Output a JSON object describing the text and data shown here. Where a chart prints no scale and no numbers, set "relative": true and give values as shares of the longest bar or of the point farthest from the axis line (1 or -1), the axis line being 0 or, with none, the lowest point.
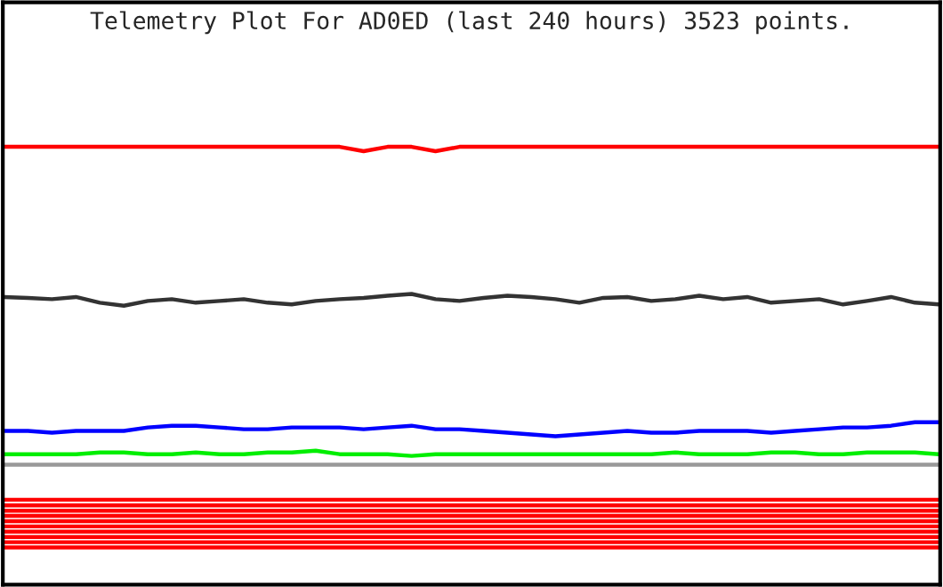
{
  "chart_data": {
    "type": "line",
    "title": "Telemetry Plot For AD0ED (last 240 hours) 3523 points.",
    "relative": true,
    "grid": false,
    "legend": false,
    "marker": "none",
    "line_style": "solid",
    "categories": [
      null,
      null,
      null,
      null,
      null,
      null,
      null,
      null,
      null,
      null,
      null,
      null,
      null,
      null,
      null,
      null,
      null,
      null,
      null,
      null,
      null,
      null,
      null,
      null,
      null,
      null,
      null,
      null,
      null,
      null,
      null,
      null,
      null,
      null,
      null,
      null,
      null,
      null,
      null,
      null
    ],
    "series": [
      {
        "color": "#ff0000",
        "values": [
          1,
          1,
          1,
          1,
          1,
          1,
          1,
          1,
          1,
          1,
          1,
          1,
          1,
          1,
          1,
          0.99,
          1,
          1,
          0.99,
          1,
          1,
          1,
          1,
          1,
          1,
          1,
          1,
          1,
          1,
          1,
          1,
          1,
          1,
          1,
          1,
          1,
          1,
          1,
          1,
          1
        ]
      },
      {
        "color": "#333333",
        "values": [
          0.657,
          0.655,
          0.652,
          0.657,
          0.644,
          0.637,
          0.648,
          0.652,
          0.644,
          0.648,
          0.652,
          0.644,
          0.64,
          0.648,
          0.652,
          0.655,
          0.66,
          0.664,
          0.652,
          0.648,
          0.655,
          0.66,
          0.657,
          0.652,
          0.644,
          0.655,
          0.657,
          0.648,
          0.652,
          0.66,
          0.652,
          0.657,
          0.644,
          0.648,
          0.652,
          0.64,
          0.648,
          0.657,
          0.644,
          0.64
        ]
      },
      {
        "color": "#0000ff",
        "values": [
          0.351,
          0.351,
          0.347,
          0.351,
          0.351,
          0.351,
          0.359,
          0.363,
          0.363,
          0.359,
          0.355,
          0.355,
          0.359,
          0.359,
          0.359,
          0.355,
          0.359,
          0.363,
          0.355,
          0.355,
          0.351,
          0.347,
          0.343,
          0.339,
          0.343,
          0.347,
          0.351,
          0.347,
          0.347,
          0.351,
          0.351,
          0.351,
          0.347,
          0.351,
          0.355,
          0.359,
          0.359,
          0.363,
          0.371,
          0.371
        ]
      },
      {
        "color": "#00ee00",
        "values": [
          0.298,
          0.298,
          0.298,
          0.298,
          0.302,
          0.302,
          0.298,
          0.298,
          0.302,
          0.298,
          0.298,
          0.302,
          0.302,
          0.306,
          0.298,
          0.298,
          0.298,
          0.294,
          0.298,
          0.298,
          0.298,
          0.298,
          0.298,
          0.298,
          0.298,
          0.298,
          0.298,
          0.298,
          0.302,
          0.298,
          0.298,
          0.298,
          0.302,
          0.302,
          0.298,
          0.298,
          0.302,
          0.302,
          0.302,
          0.298
        ]
      },
      {
        "color": "#999999",
        "values": [
          0.274,
          0.274,
          0.274,
          0.274,
          0.274,
          0.274,
          0.274,
          0.274,
          0.274,
          0.274,
          0.274,
          0.274,
          0.274,
          0.274,
          0.274,
          0.274,
          0.274,
          0.274,
          0.274,
          0.274,
          0.274,
          0.274,
          0.274,
          0.274,
          0.274,
          0.274,
          0.274,
          0.274,
          0.274,
          0.274,
          0.274,
          0.274,
          0.274,
          0.274,
          0.274,
          0.274,
          0.274,
          0.274,
          0.274,
          0.274
        ]
      },
      {
        "color": "#ff0000",
        "values": [
          0.194,
          0.194,
          0.194,
          0.194,
          0.194,
          0.194,
          0.194,
          0.194,
          0.194,
          0.194,
          0.194,
          0.194,
          0.194,
          0.194,
          0.194,
          0.194,
          0.194,
          0.194,
          0.194,
          0.194,
          0.194,
          0.194,
          0.194,
          0.194,
          0.194,
          0.194,
          0.194,
          0.194,
          0.194,
          0.194,
          0.194,
          0.194,
          0.194,
          0.194,
          0.194,
          0.194,
          0.194,
          0.194,
          0.194,
          0.194
        ]
      },
      {
        "color": "#ff0000",
        "values": [
          0.181,
          0.181,
          0.181,
          0.181,
          0.181,
          0.181,
          0.181,
          0.181,
          0.181,
          0.181,
          0.181,
          0.181,
          0.181,
          0.181,
          0.181,
          0.181,
          0.181,
          0.181,
          0.181,
          0.181,
          0.181,
          0.181,
          0.181,
          0.181,
          0.181,
          0.181,
          0.181,
          0.181,
          0.181,
          0.181,
          0.181,
          0.181,
          0.181,
          0.181,
          0.181,
          0.181,
          0.181,
          0.181,
          0.181,
          0.181
        ]
      },
      {
        "color": "#ff0000",
        "values": [
          0.169,
          0.169,
          0.169,
          0.169,
          0.169,
          0.169,
          0.169,
          0.169,
          0.169,
          0.169,
          0.169,
          0.169,
          0.169,
          0.169,
          0.169,
          0.169,
          0.169,
          0.169,
          0.169,
          0.169,
          0.169,
          0.169,
          0.169,
          0.169,
          0.169,
          0.169,
          0.169,
          0.169,
          0.169,
          0.169,
          0.169,
          0.169,
          0.169,
          0.169,
          0.169,
          0.169,
          0.169,
          0.169,
          0.169,
          0.169
        ]
      },
      {
        "color": "#ff0000",
        "values": [
          0.157,
          0.157,
          0.157,
          0.157,
          0.157,
          0.157,
          0.157,
          0.157,
          0.157,
          0.157,
          0.157,
          0.157,
          0.157,
          0.157,
          0.157,
          0.157,
          0.157,
          0.157,
          0.157,
          0.157,
          0.157,
          0.157,
          0.157,
          0.157,
          0.157,
          0.157,
          0.157,
          0.157,
          0.157,
          0.157,
          0.157,
          0.157,
          0.157,
          0.157,
          0.157,
          0.157,
          0.157,
          0.157,
          0.157,
          0.157
        ]
      },
      {
        "color": "#ff0000",
        "values": [
          0.145,
          0.145,
          0.145,
          0.145,
          0.145,
          0.145,
          0.145,
          0.145,
          0.145,
          0.145,
          0.145,
          0.145,
          0.145,
          0.145,
          0.145,
          0.145,
          0.145,
          0.145,
          0.145,
          0.145,
          0.145,
          0.145,
          0.145,
          0.145,
          0.145,
          0.145,
          0.145,
          0.145,
          0.145,
          0.145,
          0.145,
          0.145,
          0.145,
          0.145,
          0.145,
          0.145,
          0.145,
          0.145,
          0.145,
          0.145
        ]
      },
      {
        "color": "#ff0000",
        "values": [
          0.133,
          0.133,
          0.133,
          0.133,
          0.133,
          0.133,
          0.133,
          0.133,
          0.133,
          0.133,
          0.133,
          0.133,
          0.133,
          0.133,
          0.133,
          0.133,
          0.133,
          0.133,
          0.133,
          0.133,
          0.133,
          0.133,
          0.133,
          0.133,
          0.133,
          0.133,
          0.133,
          0.133,
          0.133,
          0.133,
          0.133,
          0.133,
          0.133,
          0.133,
          0.133,
          0.133,
          0.133,
          0.133,
          0.133,
          0.133
        ]
      },
      {
        "color": "#ff0000",
        "values": [
          0.121,
          0.121,
          0.121,
          0.121,
          0.121,
          0.121,
          0.121,
          0.121,
          0.121,
          0.121,
          0.121,
          0.121,
          0.121,
          0.121,
          0.121,
          0.121,
          0.121,
          0.121,
          0.121,
          0.121,
          0.121,
          0.121,
          0.121,
          0.121,
          0.121,
          0.121,
          0.121,
          0.121,
          0.121,
          0.121,
          0.121,
          0.121,
          0.121,
          0.121,
          0.121,
          0.121,
          0.121,
          0.121,
          0.121,
          0.121
        ]
      },
      {
        "color": "#ff0000",
        "values": [
          0.109,
          0.109,
          0.109,
          0.109,
          0.109,
          0.109,
          0.109,
          0.109,
          0.109,
          0.109,
          0.109,
          0.109,
          0.109,
          0.109,
          0.109,
          0.109,
          0.109,
          0.109,
          0.109,
          0.109,
          0.109,
          0.109,
          0.109,
          0.109,
          0.109,
          0.109,
          0.109,
          0.109,
          0.109,
          0.109,
          0.109,
          0.109,
          0.109,
          0.109,
          0.109,
          0.109,
          0.109,
          0.109,
          0.109,
          0.109
        ]
      },
      {
        "color": "#ff0000",
        "values": [
          0.097,
          0.097,
          0.097,
          0.097,
          0.097,
          0.097,
          0.097,
          0.097,
          0.097,
          0.097,
          0.097,
          0.097,
          0.097,
          0.097,
          0.097,
          0.097,
          0.097,
          0.097,
          0.097,
          0.097,
          0.097,
          0.097,
          0.097,
          0.097,
          0.097,
          0.097,
          0.097,
          0.097,
          0.097,
          0.097,
          0.097,
          0.097,
          0.097,
          0.097,
          0.097,
          0.097,
          0.097,
          0.097,
          0.097,
          0.097
        ]
      },
      {
        "color": "#ff0000",
        "values": [
          0.085,
          0.085,
          0.085,
          0.085,
          0.085,
          0.085,
          0.085,
          0.085,
          0.085,
          0.085,
          0.085,
          0.085,
          0.085,
          0.085,
          0.085,
          0.085,
          0.085,
          0.085,
          0.085,
          0.085,
          0.085,
          0.085,
          0.085,
          0.085,
          0.085,
          0.085,
          0.085,
          0.085,
          0.085,
          0.085,
          0.085,
          0.085,
          0.085,
          0.085,
          0.085,
          0.085,
          0.085,
          0.085,
          0.085,
          0.085
        ]
      }
    ]
  }
}
